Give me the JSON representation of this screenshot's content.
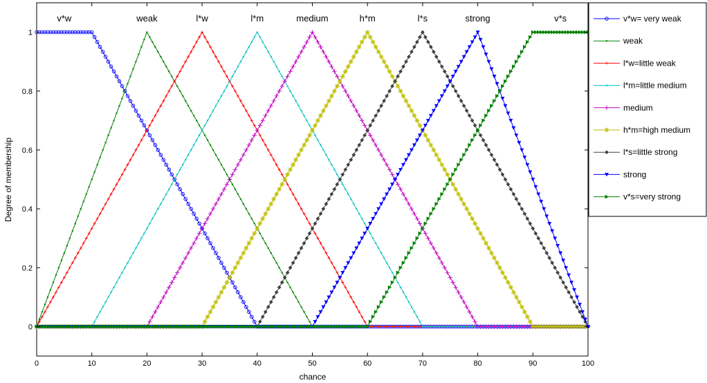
{
  "chart_data": {
    "type": "line",
    "title": "",
    "xlabel": "chance",
    "ylabel": "Degree of membership",
    "xlim": [
      0,
      100
    ],
    "ylim": [
      -0.1,
      1.1
    ],
    "x_ticks": [
      0,
      10,
      20,
      30,
      40,
      50,
      60,
      70,
      80,
      90,
      100
    ],
    "y_ticks": [
      0,
      0.2,
      0.4,
      0.6,
      0.8,
      1
    ],
    "grid": false,
    "legend_position": "outside-right-top",
    "top_labels": [
      {
        "text": "v*w",
        "x": 5
      },
      {
        "text": "weak",
        "x": 20
      },
      {
        "text": "l*w",
        "x": 30
      },
      {
        "text": "l*m",
        "x": 40
      },
      {
        "text": "medium",
        "x": 50
      },
      {
        "text": "h*m",
        "x": 60
      },
      {
        "text": "l*s",
        "x": 70
      },
      {
        "text": "strong",
        "x": 80
      },
      {
        "text": "v*s",
        "x": 95
      }
    ],
    "series": [
      {
        "name": "v*w= very weak",
        "color": "#0000ff",
        "marker": "circle",
        "x": [
          0,
          10,
          40,
          100
        ],
        "y": [
          1,
          1,
          0,
          0
        ]
      },
      {
        "name": "weak",
        "color": "#008000",
        "marker": "dot",
        "x": [
          0,
          20,
          50,
          100
        ],
        "y": [
          0,
          1,
          0,
          0
        ]
      },
      {
        "name": "l*w=little weak",
        "color": "#ff0000",
        "marker": "plus-small",
        "x": [
          0,
          30,
          60,
          100
        ],
        "y": [
          0,
          1,
          0,
          0
        ]
      },
      {
        "name": "l*m=little medium",
        "color": "#00bfbf",
        "marker": "dot",
        "x": [
          0,
          10,
          40,
          70,
          100
        ],
        "y": [
          0,
          0,
          1,
          0,
          0
        ]
      },
      {
        "name": "medium",
        "color": "#bf00bf",
        "marker": "plus",
        "x": [
          0,
          20,
          50,
          80,
          100
        ],
        "y": [
          0,
          0,
          1,
          0,
          0
        ]
      },
      {
        "name": "h*m=high medium",
        "color": "#bfbf00",
        "marker": "star",
        "x": [
          0,
          30,
          60,
          90,
          100
        ],
        "y": [
          0,
          0,
          1,
          0,
          0
        ]
      },
      {
        "name": "l*s=little strong",
        "color": "#404040",
        "marker": "diamond",
        "x": [
          0,
          40,
          70,
          100
        ],
        "y": [
          0,
          0,
          1,
          0
        ]
      },
      {
        "name": "strong",
        "color": "#0000ff",
        "marker": "triangle-down",
        "x": [
          0,
          50,
          80,
          100
        ],
        "y": [
          0,
          0,
          1,
          0
        ]
      },
      {
        "name": "v*s=very strong",
        "color": "#008000",
        "marker": "triangle-right",
        "x": [
          0,
          60,
          90,
          100
        ],
        "y": [
          0,
          0,
          1,
          1
        ]
      }
    ]
  }
}
